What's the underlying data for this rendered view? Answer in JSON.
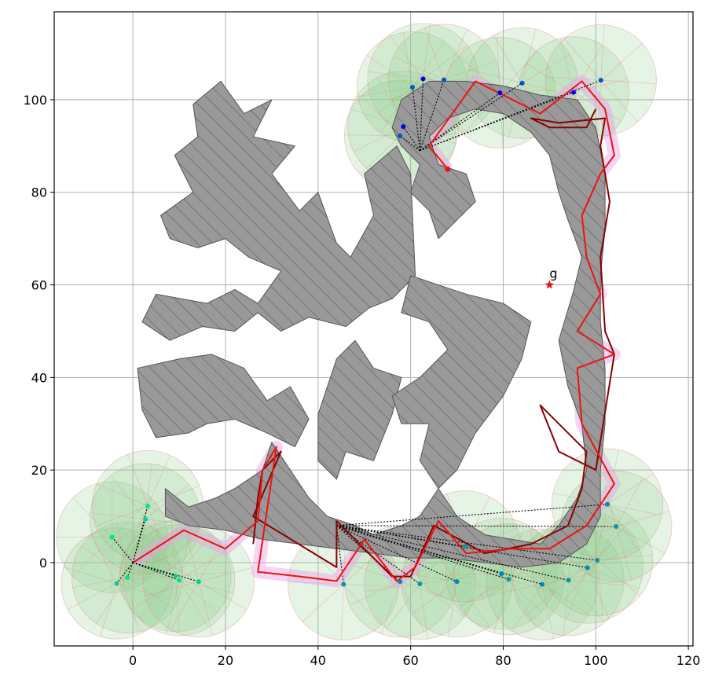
{
  "chart_data": {
    "type": "scatter",
    "title": "",
    "xlabel": "",
    "ylabel": "",
    "xlim": [
      -17,
      121
    ],
    "ylim": [
      -18,
      119
    ],
    "x_ticks": [
      "0",
      "20",
      "40",
      "60",
      "80",
      "100",
      "120"
    ],
    "y_ticks": [
      "0",
      "20",
      "40",
      "60",
      "80",
      "100"
    ],
    "grid": true,
    "goal": {
      "label": "g",
      "x": 90,
      "y": 60
    },
    "colors": {
      "obstacle_fill": "#999999",
      "obstacle_edge": "#555555",
      "path": "#ee1111",
      "path_dark": "#8b0000",
      "sensor_disc": "#8fcf8f",
      "sensor_ray": "#e08080",
      "visibility_region": "#e8a0e8",
      "goal_marker": "#ee1111"
    },
    "obstacles": [
      [
        [
          6,
          75
        ],
        [
          13,
          80
        ],
        [
          9,
          88
        ],
        [
          14,
          92
        ],
        [
          13,
          99
        ],
        [
          19,
          104
        ],
        [
          24,
          97
        ],
        [
          30,
          100
        ],
        [
          26,
          92
        ],
        [
          35,
          90
        ],
        [
          30,
          84
        ],
        [
          36,
          76
        ],
        [
          40,
          80
        ],
        [
          44,
          69
        ],
        [
          47,
          66
        ],
        [
          52,
          75
        ],
        [
          50,
          84
        ],
        [
          57,
          90
        ],
        [
          60,
          84
        ],
        [
          61,
          62
        ],
        [
          56,
          57
        ],
        [
          51,
          55
        ],
        [
          46,
          51
        ],
        [
          38,
          53
        ],
        [
          32,
          50
        ],
        [
          27,
          54
        ],
        [
          22,
          50
        ],
        [
          15,
          51
        ],
        [
          8,
          48
        ],
        [
          2,
          52
        ],
        [
          5,
          58
        ],
        [
          16,
          56
        ],
        [
          22,
          59
        ],
        [
          27,
          56
        ],
        [
          32,
          63
        ],
        [
          25,
          66
        ],
        [
          20,
          70
        ],
        [
          14,
          68
        ],
        [
          8,
          70
        ]
      ],
      [
        [
          1,
          42
        ],
        [
          10,
          44
        ],
        [
          17,
          45
        ],
        [
          24,
          42
        ],
        [
          29,
          35
        ],
        [
          34,
          38
        ],
        [
          38,
          31
        ],
        [
          35,
          25
        ],
        [
          29,
          28
        ],
        [
          22,
          31
        ],
        [
          16,
          30
        ],
        [
          12,
          28
        ],
        [
          5,
          27
        ],
        [
          2,
          33
        ]
      ],
      [
        [
          40,
          32
        ],
        [
          44,
          44
        ],
        [
          48,
          48
        ],
        [
          52,
          42
        ],
        [
          58,
          40
        ],
        [
          56,
          32
        ],
        [
          52,
          22
        ],
        [
          46,
          24
        ],
        [
          44,
          18
        ],
        [
          40,
          22
        ]
      ],
      [
        [
          60,
          62
        ],
        [
          66,
          60
        ],
        [
          72,
          58
        ],
        [
          80,
          56
        ],
        [
          86,
          52
        ],
        [
          84,
          44
        ],
        [
          80,
          36
        ],
        [
          74,
          28
        ],
        [
          70,
          20
        ],
        [
          66,
          16
        ],
        [
          62,
          22
        ],
        [
          64,
          30
        ],
        [
          58,
          30
        ],
        [
          56,
          36
        ],
        [
          62,
          40
        ],
        [
          68,
          46
        ],
        [
          64,
          52
        ],
        [
          58,
          54
        ]
      ],
      [
        [
          7,
          16
        ],
        [
          12,
          12
        ],
        [
          18,
          14
        ],
        [
          22,
          16
        ],
        [
          28,
          20
        ],
        [
          30,
          26
        ],
        [
          34,
          20
        ],
        [
          38,
          14
        ],
        [
          42,
          10
        ],
        [
          48,
          8
        ],
        [
          52,
          6
        ],
        [
          58,
          8
        ],
        [
          62,
          10
        ],
        [
          66,
          16
        ],
        [
          70,
          10
        ],
        [
          76,
          6
        ],
        [
          82,
          5
        ],
        [
          88,
          4
        ],
        [
          92,
          8
        ],
        [
          96,
          14
        ],
        [
          98,
          20
        ],
        [
          97,
          30
        ],
        [
          94,
          38
        ],
        [
          92,
          48
        ],
        [
          95,
          58
        ],
        [
          97,
          66
        ],
        [
          94,
          74
        ],
        [
          92,
          80
        ],
        [
          90,
          88
        ],
        [
          86,
          93
        ],
        [
          80,
          97
        ],
        [
          74,
          98
        ],
        [
          68,
          96
        ],
        [
          64,
          92
        ],
        [
          66,
          86
        ],
        [
          72,
          84
        ],
        [
          74,
          78
        ],
        [
          70,
          74
        ],
        [
          66,
          70
        ],
        [
          64,
          76
        ],
        [
          60,
          80
        ],
        [
          62,
          86
        ],
        [
          58,
          90
        ],
        [
          56,
          94
        ],
        [
          58,
          100
        ],
        [
          64,
          104
        ],
        [
          72,
          104
        ],
        [
          80,
          103
        ],
        [
          88,
          101
        ],
        [
          96,
          100
        ],
        [
          100,
          94
        ],
        [
          102,
          84
        ],
        [
          102,
          72
        ],
        [
          101,
          62
        ],
        [
          101,
          52
        ],
        [
          102,
          42
        ],
        [
          102,
          30
        ],
        [
          101,
          20
        ],
        [
          101,
          10
        ],
        [
          98,
          4
        ],
        [
          92,
          0
        ],
        [
          84,
          -1
        ],
        [
          76,
          0
        ],
        [
          68,
          1
        ],
        [
          60,
          1
        ],
        [
          52,
          2
        ],
        [
          44,
          3
        ],
        [
          36,
          4
        ],
        [
          28,
          5
        ],
        [
          20,
          7
        ],
        [
          12,
          8
        ],
        [
          7,
          10
        ]
      ]
    ],
    "vehicles": [
      {
        "start": [
          0,
          0
        ],
        "sensors": [
          [
            -4.5,
            5.5
          ],
          [
            -3.5,
            -4.5
          ],
          [
            -1.2,
            -3.2
          ],
          [
            2.7,
            9.4
          ],
          [
            3.2,
            12.2
          ],
          [
            9.2,
            -2.9
          ],
          [
            10,
            -3.8
          ],
          [
            14.2,
            -4.1
          ]
        ]
      },
      {
        "start": [
          44,
          8
        ],
        "sensors": [
          [
            45.5,
            -4.7
          ],
          [
            57.7,
            -4.1
          ],
          [
            62,
            -4.6
          ],
          [
            70,
            -4.1
          ],
          [
            71.7,
            3.5
          ],
          [
            79.6,
            -2.4
          ],
          [
            81.2,
            -3.6
          ],
          [
            88.4,
            -4.7
          ],
          [
            94.1,
            -3.8
          ],
          [
            98.2,
            -1.1
          ],
          [
            100.3,
            0.5
          ],
          [
            102.5,
            12.6
          ],
          [
            104.4,
            7.8
          ]
        ]
      },
      {
        "start": [
          62,
          89
        ],
        "sensors": [
          [
            57.7,
            92.2
          ],
          [
            58.4,
            94.2
          ],
          [
            60.4,
            102.7
          ],
          [
            62.7,
            104.5
          ],
          [
            67.2,
            104.3
          ],
          [
            79.3,
            101.5
          ],
          [
            84.1,
            103.6
          ],
          [
            95.2,
            101.6
          ],
          [
            101.1,
            104.2
          ]
        ]
      }
    ],
    "path_red": [
      [
        0,
        0
      ],
      [
        11,
        7
      ],
      [
        20,
        3
      ],
      [
        27,
        9
      ],
      [
        28,
        20
      ],
      [
        31,
        25
      ],
      [
        27,
        -2
      ],
      [
        36,
        -3
      ],
      [
        44,
        -4
      ],
      [
        50,
        5
      ],
      [
        57,
        -4
      ],
      [
        61,
        -1
      ],
      [
        66,
        9
      ],
      [
        72,
        2
      ],
      [
        82,
        3
      ],
      [
        90,
        3
      ],
      [
        98,
        8
      ],
      [
        104,
        17
      ],
      [
        97,
        30
      ],
      [
        96,
        42
      ],
      [
        104,
        45
      ],
      [
        96,
        50
      ],
      [
        101,
        58
      ],
      [
        98,
        66
      ],
      [
        97,
        75
      ],
      [
        101,
        84
      ],
      [
        104,
        88
      ],
      [
        102,
        98
      ],
      [
        97,
        104
      ],
      [
        88,
        97
      ],
      [
        74,
        104
      ],
      [
        64,
        90
      ],
      [
        68,
        85
      ]
    ],
    "path_dark": [
      [
        26,
        4
      ],
      [
        27,
        14
      ],
      [
        28,
        20
      ],
      [
        32,
        24
      ],
      [
        26,
        10
      ],
      [
        44,
        -1
      ],
      [
        44,
        9
      ],
      [
        49,
        4
      ],
      [
        56,
        -3
      ],
      [
        60,
        -3
      ],
      [
        65,
        8
      ],
      [
        76,
        2
      ],
      [
        86,
        4
      ],
      [
        94,
        8
      ],
      [
        97,
        16
      ],
      [
        98,
        24
      ],
      [
        88,
        34
      ],
      [
        92,
        24
      ],
      [
        100,
        20
      ],
      [
        104,
        45
      ],
      [
        102,
        50
      ],
      [
        101,
        66
      ],
      [
        103,
        78
      ],
      [
        101,
        90
      ],
      [
        102,
        96
      ],
      [
        92,
        95
      ],
      [
        86,
        96
      ],
      [
        90,
        94
      ],
      [
        98,
        94
      ],
      [
        100,
        98
      ]
    ]
  }
}
